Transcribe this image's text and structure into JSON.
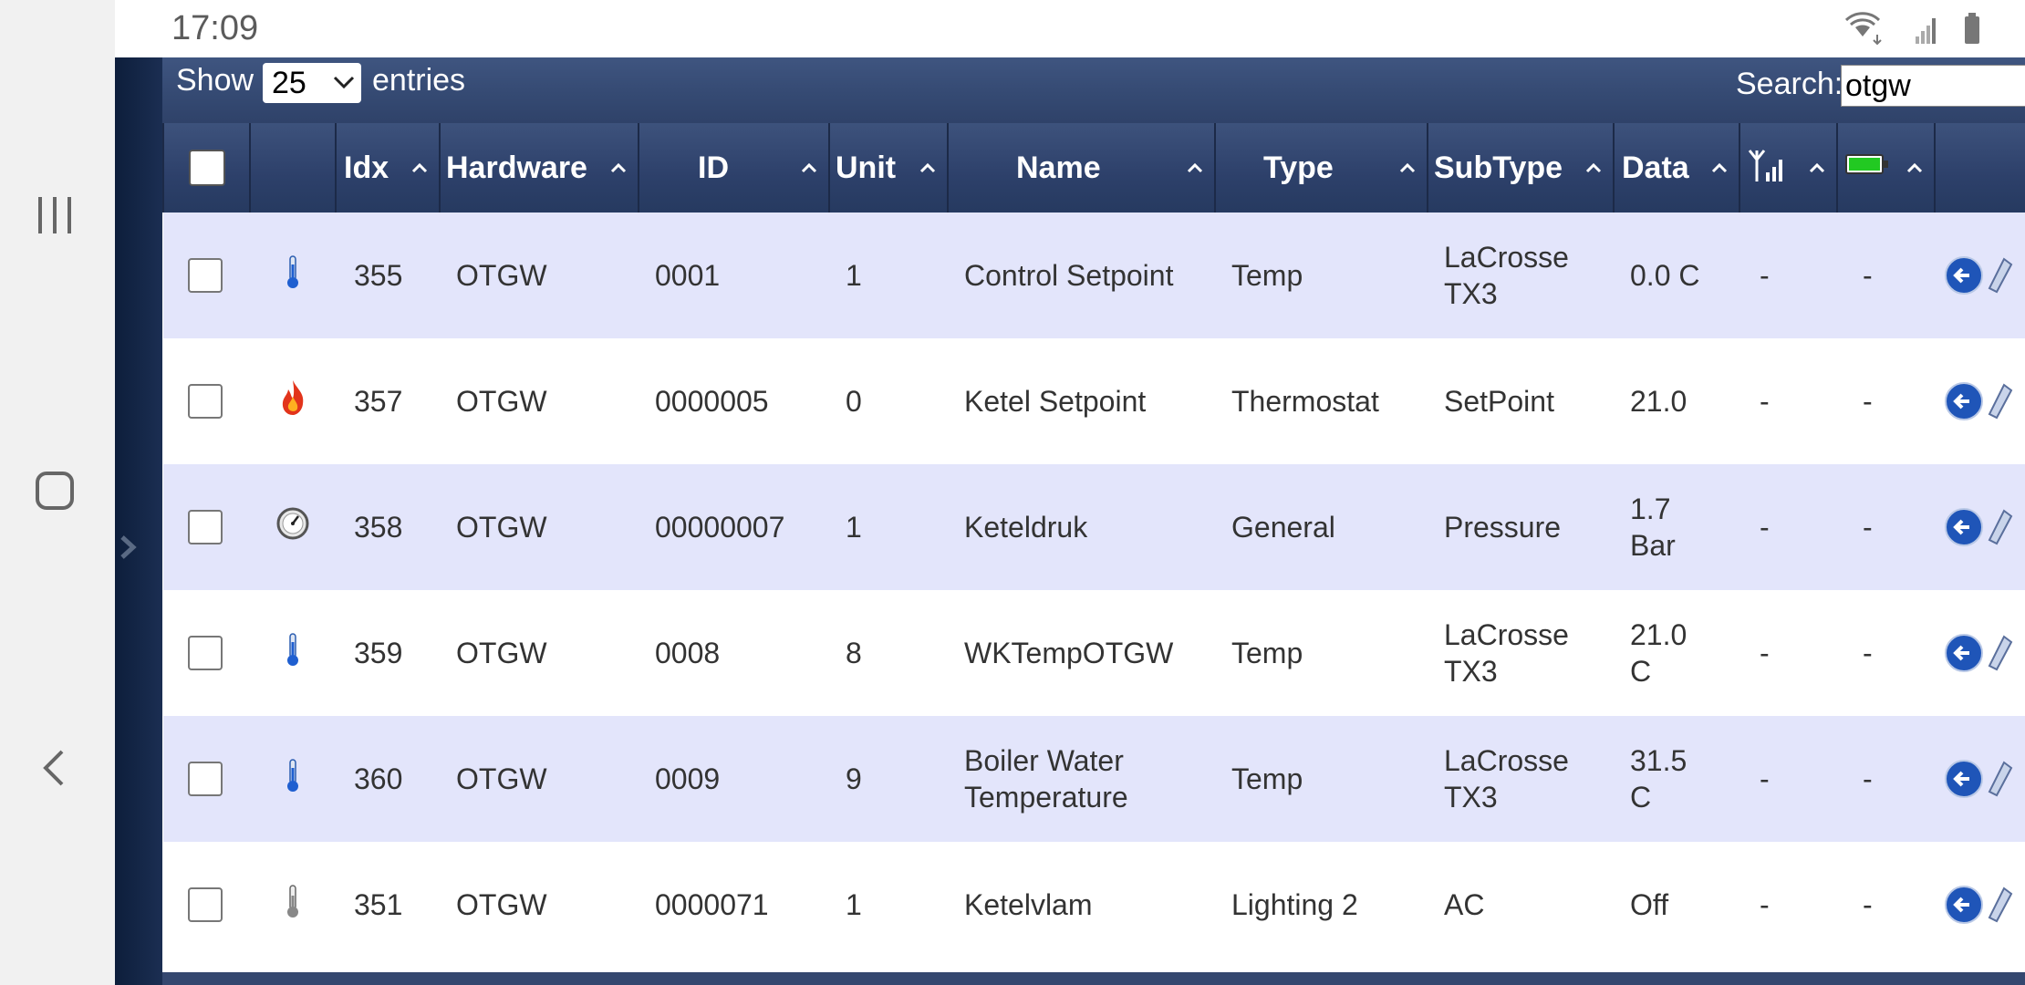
{
  "status_bar": {
    "time": "17:09"
  },
  "toolbar": {
    "show_label": "Show",
    "page_size": "25",
    "entries_label": "entries",
    "search_label": "Search:",
    "search_value": "otgw"
  },
  "table": {
    "columns": [
      "Idx",
      "Hardware",
      "ID",
      "Unit",
      "Name",
      "Type",
      "SubType",
      "Data"
    ],
    "rows": [
      {
        "icon": "thermometer-icon",
        "idx": "355",
        "hardware": "OTGW",
        "id": "0001",
        "unit": "1",
        "name": "Control Setpoint",
        "type": "Temp",
        "subtype": "LaCrosse TX3",
        "data": "0.0 C",
        "signal": "-",
        "battery": "-"
      },
      {
        "icon": "flame-icon",
        "idx": "357",
        "hardware": "OTGW",
        "id": "0000005",
        "unit": "0",
        "name": "Ketel Setpoint",
        "type": "Thermostat",
        "subtype": "SetPoint",
        "data": "21.0",
        "signal": "-",
        "battery": "-"
      },
      {
        "icon": "gauge-icon",
        "idx": "358",
        "hardware": "OTGW",
        "id": "00000007",
        "unit": "1",
        "name": "Keteldruk",
        "type": "General",
        "subtype": "Pressure",
        "data": "1.7 Bar",
        "signal": "-",
        "battery": "-"
      },
      {
        "icon": "thermometer-icon",
        "idx": "359",
        "hardware": "OTGW",
        "id": "0008",
        "unit": "8",
        "name": "WKTempOTGW",
        "type": "Temp",
        "subtype": "LaCrosse TX3",
        "data": "21.0 C",
        "signal": "-",
        "battery": "-"
      },
      {
        "icon": "thermometer-icon",
        "idx": "360",
        "hardware": "OTGW",
        "id": "0009",
        "unit": "9",
        "name": "Boiler Water Temperature",
        "type": "Temp",
        "subtype": "LaCrosse TX3",
        "data": "31.5 C",
        "signal": "-",
        "battery": "-"
      },
      {
        "icon": "switch-off-icon",
        "idx": "351",
        "hardware": "OTGW",
        "id": "0000071",
        "unit": "1",
        "name": "Ketelvlam",
        "type": "Lighting 2",
        "subtype": "AC",
        "data": "Off",
        "signal": "-",
        "battery": "-"
      }
    ]
  }
}
